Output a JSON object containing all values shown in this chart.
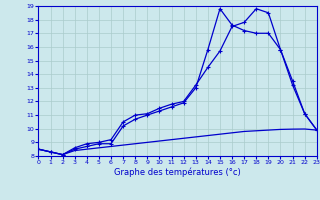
{
  "xlabel": "Graphe des températures (°c)",
  "bg_color": "#cce8ec",
  "grid_color": "#aacccc",
  "line_color": "#0000cc",
  "xmin": 0,
  "xmax": 23,
  "ymin": 8,
  "ymax": 19,
  "line1_x": [
    0,
    1,
    2,
    3,
    4,
    5,
    6,
    7,
    8,
    9,
    10,
    11,
    12,
    13,
    14,
    15,
    16,
    17,
    18,
    19,
    20,
    21,
    22,
    23
  ],
  "line1_y": [
    8.5,
    8.3,
    8.1,
    8.6,
    8.9,
    9.0,
    9.2,
    10.5,
    11.0,
    11.1,
    11.5,
    11.8,
    12.0,
    13.2,
    14.5,
    15.7,
    17.5,
    17.8,
    18.8,
    18.5,
    15.8,
    13.2,
    11.1,
    9.9
  ],
  "line2_x": [
    0,
    1,
    2,
    3,
    4,
    5,
    6,
    7,
    8,
    9,
    10,
    11,
    12,
    13,
    14,
    15,
    16,
    17,
    18,
    19,
    20,
    21,
    22,
    23
  ],
  "line2_y": [
    8.5,
    8.3,
    8.1,
    8.5,
    8.7,
    8.9,
    8.9,
    10.2,
    10.7,
    11.0,
    11.3,
    11.6,
    11.9,
    13.0,
    15.8,
    18.8,
    17.6,
    17.2,
    17.0,
    17.0,
    15.8,
    13.5,
    11.1,
    9.9
  ],
  "line3_x": [
    0,
    1,
    2,
    3,
    4,
    5,
    6,
    7,
    8,
    9,
    10,
    11,
    12,
    13,
    14,
    15,
    16,
    17,
    18,
    19,
    20,
    21,
    22,
    23
  ],
  "line3_y": [
    8.5,
    8.3,
    8.1,
    8.4,
    8.5,
    8.6,
    8.7,
    8.8,
    8.9,
    9.0,
    9.1,
    9.2,
    9.3,
    9.4,
    9.5,
    9.6,
    9.7,
    9.8,
    9.85,
    9.9,
    9.95,
    9.97,
    9.98,
    9.9
  ],
  "yticks": [
    8,
    9,
    10,
    11,
    12,
    13,
    14,
    15,
    16,
    17,
    18,
    19
  ],
  "xticks": [
    0,
    1,
    2,
    3,
    4,
    5,
    6,
    7,
    8,
    9,
    10,
    11,
    12,
    13,
    14,
    15,
    16,
    17,
    18,
    19,
    20,
    21,
    22,
    23
  ]
}
